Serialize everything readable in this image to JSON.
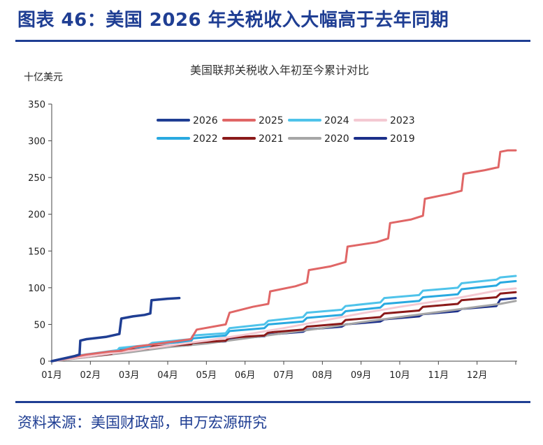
{
  "figure": {
    "title": "图表 46：美国 2026 年关税收入大幅高于去年同期",
    "source": "资料来源：美国财政部，申万宏源研究"
  },
  "chart_data": {
    "type": "line",
    "title": "美国联邦关税收入年初至今累计对比",
    "ylabel": "十亿美元",
    "ylim": [
      0,
      350
    ],
    "yticks": [
      "0",
      "50",
      "100",
      "150",
      "200",
      "250",
      "300",
      "350"
    ],
    "xtick_labels": [
      "01月",
      "02月",
      "03月",
      "04月",
      "05月",
      "06月",
      "07月",
      "08月",
      "09月",
      "10月",
      "11月",
      "12月"
    ],
    "xlim_months": [
      0,
      12
    ],
    "grid": false,
    "legend_position": "top",
    "series": [
      {
        "name": "2026",
        "color": "#1f3e93",
        "width": 3.5,
        "points": [
          [
            0,
            0
          ],
          [
            0.6,
            7
          ],
          [
            0.72,
            9
          ],
          [
            0.74,
            28
          ],
          [
            0.9,
            30
          ],
          [
            1.4,
            33
          ],
          [
            1.75,
            37
          ],
          [
            1.8,
            58
          ],
          [
            2.1,
            61
          ],
          [
            2.4,
            63
          ],
          [
            2.55,
            65
          ],
          [
            2.58,
            83
          ],
          [
            3.0,
            85
          ],
          [
            3.3,
            86
          ]
        ]
      },
      {
        "name": "2025",
        "color": "#e06666",
        "width": 3,
        "points": [
          [
            0,
            0
          ],
          [
            0.9,
            9
          ],
          [
            1.5,
            13
          ],
          [
            1.8,
            14
          ],
          [
            2.2,
            20
          ],
          [
            2.8,
            24
          ],
          [
            3.6,
            30
          ],
          [
            3.75,
            43
          ],
          [
            4.5,
            50
          ],
          [
            4.6,
            66
          ],
          [
            5.2,
            74
          ],
          [
            5.6,
            78
          ],
          [
            5.65,
            95
          ],
          [
            6.3,
            102
          ],
          [
            6.6,
            107
          ],
          [
            6.65,
            124
          ],
          [
            7.2,
            129
          ],
          [
            7.6,
            135
          ],
          [
            7.65,
            156
          ],
          [
            8.4,
            162
          ],
          [
            8.7,
            167
          ],
          [
            8.75,
            188
          ],
          [
            9.3,
            193
          ],
          [
            9.6,
            198
          ],
          [
            9.65,
            221
          ],
          [
            10.3,
            228
          ],
          [
            10.6,
            232
          ],
          [
            10.65,
            255
          ],
          [
            11.2,
            260
          ],
          [
            11.55,
            264
          ],
          [
            11.6,
            285
          ],
          [
            11.8,
            287
          ],
          [
            12.0,
            287
          ]
        ]
      },
      {
        "name": "2024",
        "color": "#4fc3ea",
        "width": 3,
        "points": [
          [
            0,
            0
          ],
          [
            0.6,
            7
          ],
          [
            1,
            10
          ],
          [
            1.7,
            15
          ],
          [
            1.75,
            18
          ],
          [
            2.5,
            22
          ],
          [
            2.6,
            25
          ],
          [
            3.6,
            30
          ],
          [
            3.65,
            35
          ],
          [
            4.5,
            38
          ],
          [
            4.6,
            45
          ],
          [
            5.5,
            50
          ],
          [
            5.6,
            55
          ],
          [
            6.5,
            60
          ],
          [
            6.6,
            66
          ],
          [
            7.5,
            70
          ],
          [
            7.6,
            75
          ],
          [
            8.5,
            80
          ],
          [
            8.6,
            86
          ],
          [
            9.5,
            90
          ],
          [
            9.6,
            96
          ],
          [
            10.5,
            100
          ],
          [
            10.6,
            106
          ],
          [
            11.5,
            111
          ],
          [
            11.6,
            114
          ],
          [
            12,
            116
          ]
        ]
      },
      {
        "name": "2023",
        "color": "#f4c9d2",
        "width": 3,
        "points": [
          [
            0,
            0
          ],
          [
            1,
            7
          ],
          [
            2,
            14
          ],
          [
            3,
            21
          ],
          [
            3.7,
            26
          ],
          [
            4,
            28
          ],
          [
            5,
            36
          ],
          [
            6,
            45
          ],
          [
            7,
            55
          ],
          [
            8,
            65
          ],
          [
            9,
            74
          ],
          [
            10,
            82
          ],
          [
            10.6,
            87
          ],
          [
            11,
            91
          ],
          [
            11.6,
            97
          ],
          [
            12,
            99
          ]
        ]
      },
      {
        "name": "2022",
        "color": "#29a9e0",
        "width": 3,
        "points": [
          [
            0,
            0
          ],
          [
            0.6,
            6
          ],
          [
            1,
            9
          ],
          [
            1.7,
            14
          ],
          [
            1.75,
            17
          ],
          [
            2.5,
            20
          ],
          [
            2.6,
            23
          ],
          [
            3.6,
            27
          ],
          [
            3.65,
            31
          ],
          [
            4.5,
            35
          ],
          [
            4.6,
            41
          ],
          [
            5.5,
            45
          ],
          [
            5.6,
            50
          ],
          [
            6.5,
            54
          ],
          [
            6.6,
            59
          ],
          [
            7.5,
            63
          ],
          [
            7.6,
            68
          ],
          [
            8.5,
            73
          ],
          [
            8.6,
            78
          ],
          [
            9.5,
            82
          ],
          [
            9.6,
            87
          ],
          [
            10.5,
            91
          ],
          [
            10.6,
            98
          ],
          [
            11.5,
            103
          ],
          [
            11.6,
            107
          ],
          [
            12,
            109
          ]
        ]
      },
      {
        "name": "2021",
        "color": "#8b1a1a",
        "width": 3,
        "points": [
          [
            0,
            0
          ],
          [
            1,
            7
          ],
          [
            1.55,
            10
          ],
          [
            1.6,
            14
          ],
          [
            2.5,
            17
          ],
          [
            2.6,
            20
          ],
          [
            3.6,
            23
          ],
          [
            3.65,
            25
          ],
          [
            4.5,
            28
          ],
          [
            4.6,
            32
          ],
          [
            5.5,
            35
          ],
          [
            5.6,
            39
          ],
          [
            6.5,
            43
          ],
          [
            6.6,
            47
          ],
          [
            7.5,
            51
          ],
          [
            7.6,
            56
          ],
          [
            8.5,
            60
          ],
          [
            8.6,
            65
          ],
          [
            9.5,
            69
          ],
          [
            9.6,
            74
          ],
          [
            10.5,
            78
          ],
          [
            10.6,
            83
          ],
          [
            11.5,
            87
          ],
          [
            11.6,
            92
          ],
          [
            12,
            94
          ]
        ]
      },
      {
        "name": "2020",
        "color": "#a6a6a6",
        "width": 3,
        "points": [
          [
            0,
            0
          ],
          [
            1,
            6
          ],
          [
            2,
            12
          ],
          [
            3,
            19
          ],
          [
            4,
            24
          ],
          [
            5,
            31
          ],
          [
            6,
            38
          ],
          [
            7,
            45
          ],
          [
            8,
            53
          ],
          [
            9,
            60
          ],
          [
            10,
            67
          ],
          [
            10.6,
            71
          ],
          [
            11,
            74
          ],
          [
            11.6,
            78
          ],
          [
            12,
            82
          ]
        ]
      },
      {
        "name": "2019",
        "color": "#1b2f8a",
        "width": 3,
        "points": [
          [
            0,
            0
          ],
          [
            0.6,
            5
          ],
          [
            1,
            8
          ],
          [
            1.7,
            12
          ],
          [
            1.75,
            14
          ],
          [
            2.5,
            16
          ],
          [
            2.6,
            18
          ],
          [
            3.6,
            22
          ],
          [
            3.65,
            24
          ],
          [
            4.5,
            27
          ],
          [
            4.6,
            30
          ],
          [
            5.5,
            34
          ],
          [
            5.6,
            36
          ],
          [
            6.5,
            40
          ],
          [
            6.6,
            43
          ],
          [
            7.5,
            47
          ],
          [
            7.6,
            50
          ],
          [
            8.5,
            54
          ],
          [
            8.6,
            57
          ],
          [
            9.5,
            61
          ],
          [
            9.6,
            64
          ],
          [
            10.5,
            68
          ],
          [
            10.6,
            71
          ],
          [
            11.5,
            75
          ],
          [
            11.6,
            84
          ],
          [
            12,
            86
          ]
        ]
      }
    ]
  }
}
